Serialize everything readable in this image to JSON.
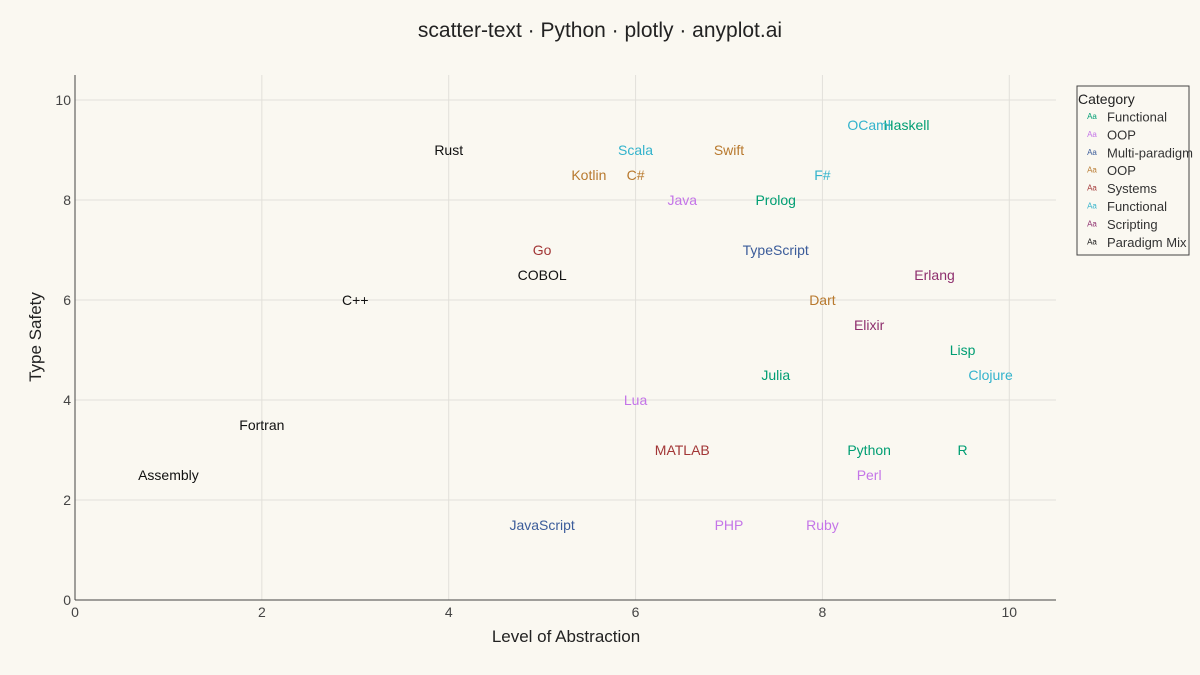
{
  "chart_data": {
    "type": "scatter",
    "title": "scatter-text · Python · plotly · anyplot.ai",
    "xlabel": "Level of Abstraction",
    "ylabel": "Type Safety",
    "xlim": [
      0,
      10.5
    ],
    "ylim": [
      0,
      10.5
    ],
    "xticks": [
      0,
      2,
      4,
      6,
      8,
      10
    ],
    "yticks": [
      0,
      2,
      4,
      6,
      8,
      10
    ],
    "grid": true,
    "legend": {
      "title": "Category",
      "position": "top-right",
      "symbol": "Aa"
    },
    "series": [
      {
        "name": "Functional",
        "color": "#009E73",
        "points": [
          {
            "label": "Haskell",
            "x": 8.9,
            "y": 9.5
          },
          {
            "label": "Prolog",
            "x": 7.5,
            "y": 8.0
          },
          {
            "label": "Julia",
            "x": 7.5,
            "y": 4.5
          },
          {
            "label": "Python",
            "x": 8.5,
            "y": 3.0
          },
          {
            "label": "R",
            "x": 9.5,
            "y": 3.0
          },
          {
            "label": "Lisp",
            "x": 9.5,
            "y": 5.0
          }
        ]
      },
      {
        "name": "OOP",
        "color": "#C475E8",
        "points": [
          {
            "label": "Java",
            "x": 6.5,
            "y": 8.0
          },
          {
            "label": "Lua",
            "x": 6.0,
            "y": 4.0
          },
          {
            "label": "Perl",
            "x": 8.5,
            "y": 2.5
          },
          {
            "label": "PHP",
            "x": 7.0,
            "y": 1.5
          },
          {
            "label": "Ruby",
            "x": 8.0,
            "y": 1.5
          }
        ]
      },
      {
        "name": "Multi-paradigm",
        "color": "#3B5C9A",
        "points": [
          {
            "label": "TypeScript",
            "x": 7.5,
            "y": 7.0
          },
          {
            "label": "JavaScript",
            "x": 5.0,
            "y": 1.5
          }
        ]
      },
      {
        "name": "OOP",
        "color": "#B8792E",
        "points": [
          {
            "label": "Swift",
            "x": 7.0,
            "y": 9.0
          },
          {
            "label": "Kotlin",
            "x": 5.5,
            "y": 8.5
          },
          {
            "label": "C#",
            "x": 6.0,
            "y": 8.5
          },
          {
            "label": "Dart",
            "x": 8.0,
            "y": 6.0
          }
        ]
      },
      {
        "name": "Systems",
        "color": "#A23636",
        "points": [
          {
            "label": "Go",
            "x": 5.0,
            "y": 7.0
          },
          {
            "label": "MATLAB",
            "x": 6.5,
            "y": 3.0
          }
        ]
      },
      {
        "name": "Functional",
        "color": "#33B3CC",
        "points": [
          {
            "label": "OCaml",
            "x": 8.5,
            "y": 9.5
          },
          {
            "label": "Scala",
            "x": 6.0,
            "y": 9.0
          },
          {
            "label": "F#",
            "x": 8.0,
            "y": 8.5
          },
          {
            "label": "Clojure",
            "x": 9.8,
            "y": 4.5
          }
        ]
      },
      {
        "name": "Scripting",
        "color": "#8E2F6E",
        "points": [
          {
            "label": "Erlang",
            "x": 9.2,
            "y": 6.5
          },
          {
            "label": "Elixir",
            "x": 8.5,
            "y": 5.5
          }
        ]
      },
      {
        "name": "Paradigm Mix",
        "color": "#111111",
        "points": [
          {
            "label": "Rust",
            "x": 4.0,
            "y": 9.0
          },
          {
            "label": "COBOL",
            "x": 5.0,
            "y": 6.5
          },
          {
            "label": "C++",
            "x": 3.0,
            "y": 6.0
          },
          {
            "label": "Fortran",
            "x": 2.0,
            "y": 3.5
          },
          {
            "label": "Assembly",
            "x": 1.0,
            "y": 2.5
          }
        ]
      }
    ]
  }
}
